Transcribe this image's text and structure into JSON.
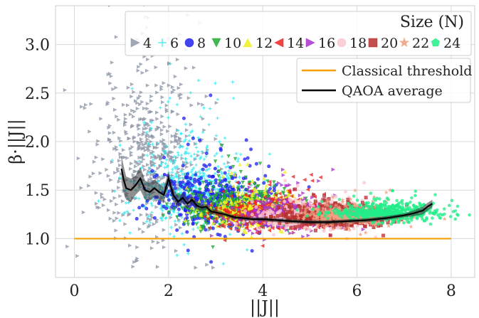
{
  "chart_data": {
    "type": "scatter",
    "xlabel": "||J||",
    "ylabel": "β·||J||",
    "xlim": [
      -0.4,
      8.5
    ],
    "ylim": [
      0.6,
      3.4
    ],
    "xticks": [
      "0",
      "2",
      "4",
      "6",
      "8"
    ],
    "yticks": [
      "1.0",
      "1.5",
      "2.0",
      "2.5",
      "3.0"
    ],
    "grid": true,
    "size_legend": {
      "title": "Size (N)",
      "placement": "top-right",
      "entries": [
        {
          "label": "4",
          "marker": "tri-right",
          "color": "#8f98a8",
          "x_center": 1.6,
          "x_spread": 0.6,
          "y_center": 1.55,
          "y_spread": 0.55
        },
        {
          "label": "6",
          "marker": "plus",
          "color": "#22e8f0",
          "x_center": 2.4,
          "x_spread": 0.6,
          "y_center": 1.38,
          "y_spread": 0.3
        },
        {
          "label": "8",
          "marker": "circle",
          "color": "#2222ee",
          "x_center": 3.0,
          "x_spread": 0.6,
          "y_center": 1.3,
          "y_spread": 0.18
        },
        {
          "label": "10",
          "marker": "tri-down",
          "color": "#22aa33",
          "x_center": 3.5,
          "x_spread": 0.55,
          "y_center": 1.25,
          "y_spread": 0.12
        },
        {
          "label": "12",
          "marker": "tri-up",
          "color": "#f0f020",
          "x_center": 3.9,
          "x_spread": 0.55,
          "y_center": 1.22,
          "y_spread": 0.1
        },
        {
          "label": "14",
          "marker": "tri-left",
          "color": "#ee2222",
          "x_center": 4.3,
          "x_spread": 0.6,
          "y_center": 1.2,
          "y_spread": 0.09
        },
        {
          "label": "16",
          "marker": "tri-right",
          "color": "#aa33cc",
          "x_center": 4.7,
          "x_spread": 0.6,
          "y_center": 1.2,
          "y_spread": 0.08
        },
        {
          "label": "18",
          "marker": "circle",
          "color": "#f8c8d0",
          "x_center": 5.1,
          "x_spread": 0.55,
          "y_center": 1.19,
          "y_spread": 0.07
        },
        {
          "label": "20",
          "marker": "square",
          "color": "#b83030",
          "x_center": 5.5,
          "x_spread": 0.55,
          "y_center": 1.19,
          "y_spread": 0.06
        },
        {
          "label": "22",
          "marker": "star",
          "color": "#f0a080",
          "x_center": 5.9,
          "x_spread": 0.55,
          "y_center": 1.2,
          "y_spread": 0.06
        },
        {
          "label": "24",
          "marker": "pentagon",
          "color": "#22ee88",
          "x_center": 6.6,
          "x_spread": 0.6,
          "y_center": 1.24,
          "y_spread": 0.06
        }
      ]
    },
    "line_legend": {
      "placement": "upper-right",
      "entries": [
        {
          "label": "Classical threshold",
          "color": "#f5a000"
        },
        {
          "label": "QAOA average",
          "color": "#000000"
        }
      ]
    },
    "classical_threshold": {
      "x": [
        0,
        8
      ],
      "y": [
        1.0,
        1.0
      ]
    },
    "qaoa_average": {
      "x": [
        1.0,
        1.05,
        1.1,
        1.2,
        1.3,
        1.4,
        1.5,
        1.6,
        1.7,
        1.8,
        1.9,
        2.0,
        2.1,
        2.2,
        2.3,
        2.4,
        2.5,
        2.6,
        2.7,
        2.8,
        2.9,
        3.0,
        3.2,
        3.4,
        3.6,
        3.8,
        4.0,
        4.3,
        4.6,
        5.0,
        5.4,
        5.8,
        6.2,
        6.6,
        7.0,
        7.2,
        7.4,
        7.5,
        7.6
      ],
      "y": [
        1.72,
        1.6,
        1.52,
        1.5,
        1.55,
        1.62,
        1.5,
        1.48,
        1.52,
        1.48,
        1.45,
        1.62,
        1.45,
        1.38,
        1.42,
        1.36,
        1.4,
        1.34,
        1.32,
        1.33,
        1.28,
        1.27,
        1.25,
        1.22,
        1.21,
        1.2,
        1.2,
        1.19,
        1.18,
        1.17,
        1.17,
        1.18,
        1.19,
        1.21,
        1.24,
        1.26,
        1.29,
        1.33,
        1.36
      ],
      "band": [
        0.14,
        0.14,
        0.12,
        0.12,
        0.1,
        0.12,
        0.1,
        0.09,
        0.09,
        0.08,
        0.08,
        0.07,
        0.07,
        0.06,
        0.05,
        0.05,
        0.04,
        0.04,
        0.03,
        0.03,
        0.03,
        0.03,
        0.02,
        0.02,
        0.02,
        0.02,
        0.02,
        0.02,
        0.02,
        0.02,
        0.02,
        0.02,
        0.02,
        0.02,
        0.02,
        0.03,
        0.04,
        0.04,
        0.04
      ]
    }
  }
}
